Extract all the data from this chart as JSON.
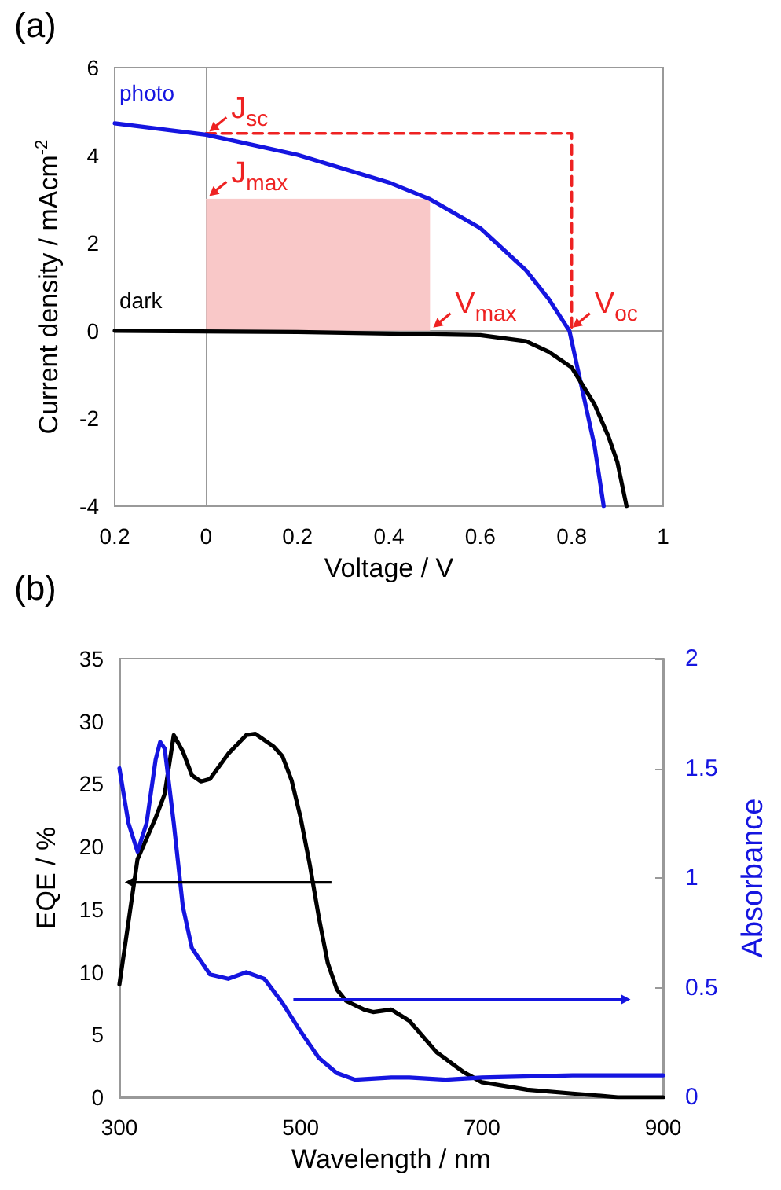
{
  "chart_data": [
    {
      "type": "line",
      "title": "(a)",
      "xlabel": "Voltage / V",
      "ylabel": "Current density / mAcm$^{-2}$",
      "xlim": [
        -0.2,
        1
      ],
      "xticks": [
        {
          "value": -0.2,
          "label": "0.2"
        },
        0,
        0.2,
        0.4,
        0.6,
        0.8,
        1
      ],
      "ylim": [
        -4,
        6
      ],
      "yticks": [
        -4,
        -2,
        0,
        2,
        4,
        6
      ],
      "series": [
        {
          "type": "area",
          "color": "#f9c8c8",
          "x": [
            0,
            0.49
          ],
          "values": [
            3,
            3
          ]
        },
        {
          "type": "line",
          "color": "#ee2222",
          "line_style": "dashed",
          "x": [
            0,
            0.8,
            0.8
          ],
          "values": [
            4.5,
            4.5,
            0
          ]
        },
        {
          "name": "photo",
          "color": "#1515e0",
          "x": [
            -0.2,
            0,
            0.2,
            0.4,
            0.49,
            0.6,
            0.7,
            0.75,
            0.795,
            0.82,
            0.85,
            0.87
          ],
          "values": [
            4.73,
            4.47,
            4.01,
            3.38,
            3.0,
            2.34,
            1.38,
            0.72,
            0,
            -1.2,
            -2.63,
            -4.0
          ]
        },
        {
          "name": "dark",
          "color": "#000000",
          "x": [
            -0.2,
            0.2,
            0.6,
            0.7,
            0.75,
            0.8,
            0.85,
            0.88,
            0.9,
            0.92
          ],
          "values": [
            0,
            -0.03,
            -0.1,
            -0.24,
            -0.48,
            -0.84,
            -1.68,
            -2.4,
            -3.0,
            -4.0
          ]
        }
      ],
      "annotations": [
        {
          "text": "J$_{sc}$",
          "x": 0,
          "y": 4.47
        },
        {
          "text": "J$_{max}$",
          "x": 0,
          "y": 3
        },
        {
          "text": "V$_{max}$",
          "x": 0.49,
          "y": 0
        },
        {
          "text": "V$_{oc}$",
          "x": 0.795,
          "y": 0
        }
      ]
    },
    {
      "type": "line",
      "title": "(b)",
      "xlabel": "Wavelength / nm",
      "ylabel": "EQE / %",
      "y2label": "Absorbance",
      "xlim": [
        300,
        900
      ],
      "xticks": [
        300,
        500,
        700,
        900
      ],
      "ylim": [
        0,
        35
      ],
      "yticks": [
        0,
        5,
        10,
        15,
        20,
        25,
        30,
        35
      ],
      "y2lim": [
        0,
        2
      ],
      "y2ticks": [
        0,
        0.5,
        1,
        1.5,
        2
      ],
      "series": [
        {
          "color": "#000000",
          "x": [
            300,
            320,
            340,
            350,
            360,
            370,
            380,
            390,
            400,
            420,
            440,
            450,
            470,
            480,
            490,
            500,
            510,
            520,
            530,
            540,
            550,
            570,
            580,
            600,
            620,
            650,
            680,
            700,
            750,
            800,
            850,
            900
          ],
          "values": [
            9,
            19,
            22.3,
            24.2,
            28.9,
            27.6,
            25.7,
            25.2,
            25.4,
            27.4,
            28.9,
            29,
            28,
            27.2,
            25.3,
            22.3,
            18.6,
            14.4,
            10.7,
            8.6,
            7.7,
            7,
            6.8,
            7,
            6.1,
            3.6,
            2,
            1.2,
            0.6,
            0.3,
            0,
            0
          ]
        },
        {
          "color": "#1515e0",
          "axis": "y2",
          "x": [
            300,
            310,
            320,
            330,
            340,
            345,
            350,
            360,
            370,
            380,
            400,
            420,
            440,
            460,
            480,
            500,
            520,
            540,
            560,
            600,
            620,
            660,
            700,
            800,
            900
          ],
          "values": [
            1.5,
            1.25,
            1.12,
            1.25,
            1.54,
            1.62,
            1.59,
            1.25,
            0.87,
            0.68,
            0.56,
            0.54,
            0.57,
            0.54,
            0.43,
            0.3,
            0.18,
            0.11,
            0.08,
            0.09,
            0.09,
            0.08,
            0.09,
            0.1,
            0.1
          ]
        }
      ]
    }
  ]
}
